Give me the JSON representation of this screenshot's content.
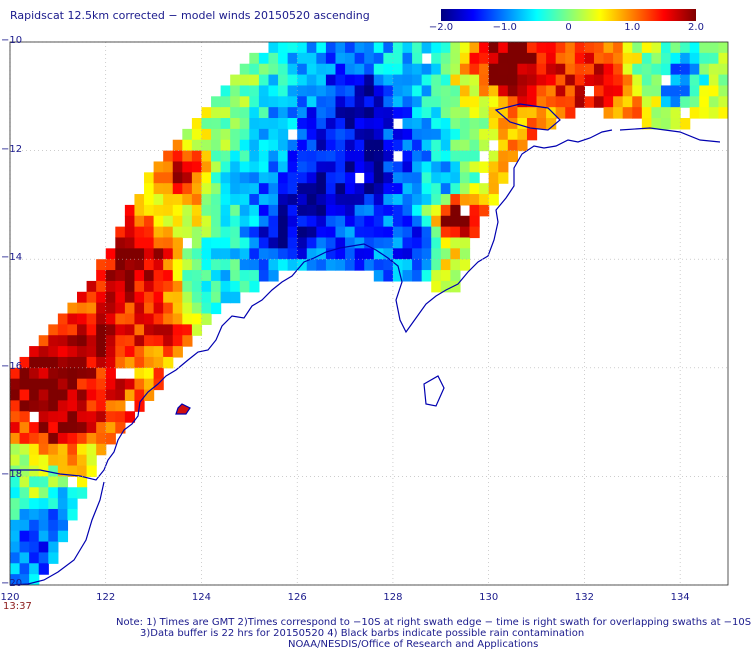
{
  "title": "Rapidscat 12.5km corrected − model winds 20150520 ascending",
  "colorbar": {
    "stops": [
      "#00007f",
      "#0000ff",
      "#0080ff",
      "#00ffff",
      "#80ff80",
      "#ffff00",
      "#ff8000",
      "#ff0000",
      "#7f0000"
    ],
    "ticks": [
      {
        "value": -2.0,
        "label": "−2.0"
      },
      {
        "value": -1.0,
        "label": "−1.0"
      },
      {
        "value": 0,
        "label": "0"
      },
      {
        "value": 1.0,
        "label": "1.0"
      },
      {
        "value": 2.0,
        "label": "2.0"
      }
    ],
    "range": [
      -2.0,
      2.0
    ]
  },
  "chart_data": {
    "type": "heatmap",
    "title": "Rapidscat 12.5km corrected − model winds 20150520 ascending",
    "xlabel": "",
    "ylabel": "",
    "xlim": [
      120,
      135
    ],
    "ylim": [
      -20,
      -10
    ],
    "x_ticks": [
      120,
      122,
      124,
      126,
      128,
      130,
      132,
      134
    ],
    "x_tick_labels": [
      "120",
      "122",
      "124",
      "126",
      "128",
      "130",
      "132",
      "134"
    ],
    "y_ticks": [
      -10,
      -12,
      -14,
      -16,
      -18,
      -20
    ],
    "y_tick_labels": [
      "−10",
      "−12",
      "−14",
      "−16",
      "−18",
      "−20"
    ],
    "value_range": [
      -2.0,
      2.0
    ],
    "grid": true,
    "grid_spacing_deg": 2,
    "cell_size_deg": 0.2,
    "regions": [
      {
        "lon": 120.9,
        "lat": -16.4,
        "value": 2.1
      },
      {
        "lon": 121.2,
        "lat": -17.0,
        "value": 2.0
      },
      {
        "lon": 121.8,
        "lat": -15.6,
        "value": 1.9
      },
      {
        "lon": 122.0,
        "lat": -16.2,
        "value": 1.4
      },
      {
        "lon": 121.3,
        "lat": -14.9,
        "value": 1.2
      },
      {
        "lon": 122.7,
        "lat": -14.0,
        "value": 1.9
      },
      {
        "lon": 123.0,
        "lat": -15.3,
        "value": 1.5
      },
      {
        "lon": 123.0,
        "lat": -16.1,
        "value": 0.9
      },
      {
        "lon": 120.5,
        "lat": -18.3,
        "value": 0.0
      },
      {
        "lon": 120.6,
        "lat": -19.0,
        "value": -1.3
      },
      {
        "lon": 121.2,
        "lat": -18.7,
        "value": -0.9
      },
      {
        "lon": 121.6,
        "lat": -17.6,
        "value": 0.6
      },
      {
        "lon": 123.6,
        "lat": -12.5,
        "value": 1.6
      },
      {
        "lon": 123.5,
        "lat": -13.0,
        "value": 0.5
      },
      {
        "lon": 124.2,
        "lat": -14.3,
        "value": -0.5
      },
      {
        "lon": 124.4,
        "lat": -11.6,
        "value": 0.2
      },
      {
        "lon": 125.2,
        "lat": -12.5,
        "value": -1.0
      },
      {
        "lon": 125.5,
        "lat": -11.0,
        "value": -0.8
      },
      {
        "lon": 125.8,
        "lat": -13.5,
        "value": -1.8
      },
      {
        "lon": 126.3,
        "lat": -12.8,
        "value": -2.0
      },
      {
        "lon": 126.8,
        "lat": -11.7,
        "value": -1.6
      },
      {
        "lon": 126.0,
        "lat": -14.4,
        "value": -0.6
      },
      {
        "lon": 127.0,
        "lat": -13.9,
        "value": -1.2
      },
      {
        "lon": 127.6,
        "lat": -11.0,
        "value": -1.8
      },
      {
        "lon": 128.2,
        "lat": -12.1,
        "value": -1.2
      },
      {
        "lon": 128.5,
        "lat": -13.6,
        "value": -1.4
      },
      {
        "lon": 129.1,
        "lat": -12.6,
        "value": -0.8
      },
      {
        "lon": 129.3,
        "lat": -13.2,
        "value": 2.1
      },
      {
        "lon": 129.4,
        "lat": -14.0,
        "value": 0.4
      },
      {
        "lon": 129.8,
        "lat": -11.2,
        "value": 0.3
      },
      {
        "lon": 130.4,
        "lat": -10.6,
        "value": 2.2
      },
      {
        "lon": 130.9,
        "lat": -11.5,
        "value": 1.0
      },
      {
        "lon": 131.6,
        "lat": -10.5,
        "value": 1.4
      },
      {
        "lon": 132.3,
        "lat": -10.9,
        "value": 1.6
      },
      {
        "lon": 133.0,
        "lat": -11.3,
        "value": 1.0
      },
      {
        "lon": 133.4,
        "lat": -10.5,
        "value": 0.2
      },
      {
        "lon": 133.9,
        "lat": -10.7,
        "value": -1.1
      },
      {
        "lon": 134.6,
        "lat": -11.3,
        "value": 0.6
      },
      {
        "lon": 125.1,
        "lat": -10.8,
        "value": 0.0
      },
      {
        "lon": 124.6,
        "lat": -12.7,
        "value": -0.4
      },
      {
        "lon": 127.5,
        "lat": -12.3,
        "value": -1.9
      },
      {
        "lon": 128.0,
        "lat": -10.6,
        "value": -0.6
      }
    ],
    "annotations": [
      "13:37"
    ]
  },
  "axes": {
    "x_labels": [
      "120",
      "122",
      "124",
      "126",
      "128",
      "130",
      "132",
      "134"
    ],
    "y_labels": [
      "−10",
      "−12",
      "−14",
      "−16",
      "−18",
      "−20"
    ]
  },
  "time_label": "13:37",
  "notes": {
    "line1": "Note: 1) Times are GMT 2)Times correspond to −10S at right swath edge − time is right swath for overlapping swaths at −10S",
    "line2": "3)Data buffer is 22 hrs for 20150520 4) Black barbs indicate possible rain contamination",
    "line3": "NOAA/NESDIS/Office of Research and Applications"
  }
}
